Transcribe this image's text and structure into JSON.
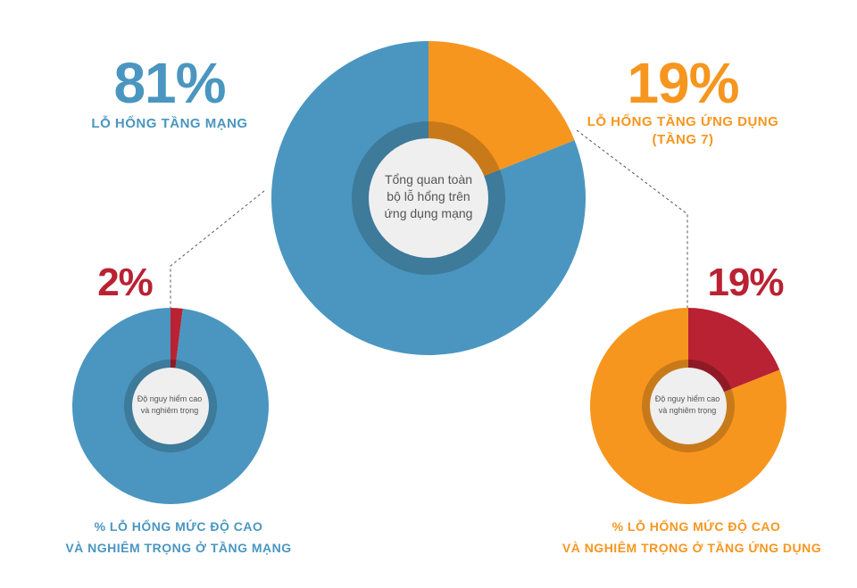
{
  "colors": {
    "blue": "#4a96c0",
    "orange": "#f6961f",
    "red": "#b92232",
    "ring_blue": "#3e7a9a",
    "ring_orange": "#c87a1a",
    "center_fill": "#efeff0",
    "connector": "#555555"
  },
  "main": {
    "left_percent": "81%",
    "left_label": "LỖ HỔNG TẦNG MẠNG",
    "right_percent": "19%",
    "right_label_line1": "LỖ HỔNG TẦNG ỨNG DỤNG",
    "right_label_line2": "(TẦNG 7)",
    "center_line1": "Tổng quan toàn",
    "center_line2": "bộ lỗ hổng trên",
    "center_line3": "ứng dụng mạng"
  },
  "left_sub": {
    "percent": "2%",
    "center_line1": "Độ nguy hiểm cao",
    "center_line2": "và nghiêm trọng",
    "caption_line1": "% LỖ HỔNG MỨC ĐỘ CAO",
    "caption_line2": "VÀ NGHIÊM TRỌNG Ở TẦNG MẠNG"
  },
  "right_sub": {
    "percent": "19%",
    "center_line1": "Độ nguy hiểm cao",
    "center_line2": "và nghiêm trọng",
    "caption_line1": "% LỖ HỔNG MỨC ĐỘ CAO",
    "caption_line2": "VÀ NGHIÊM TRỌNG Ở TẦNG ỨNG DỤNG"
  },
  "chart_data": [
    {
      "type": "pie",
      "labels": [
        "LỖ HỔNG TẦNG ỨNG DỤNG (TẦNG 7)",
        "LỖ HỔNG TẦNG MẠNG"
      ],
      "values": [
        19,
        81
      ]
    },
    {
      "type": "pie",
      "labels": [
        "Độ nguy hiểm cao và nghiêm trọng",
        ""
      ],
      "values": [
        2,
        98
      ]
    },
    {
      "type": "pie",
      "labels": [
        "Độ nguy hiểm cao và nghiêm trọng",
        ""
      ],
      "values": [
        19,
        81
      ]
    }
  ]
}
